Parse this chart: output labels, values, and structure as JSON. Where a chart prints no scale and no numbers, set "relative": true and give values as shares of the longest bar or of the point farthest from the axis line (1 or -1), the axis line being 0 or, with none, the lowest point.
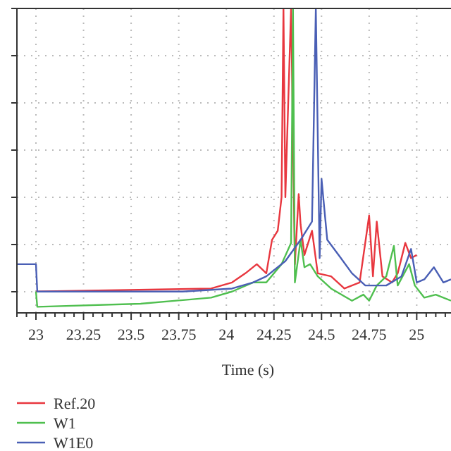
{
  "chart_data": {
    "type": "line",
    "relative": true,
    "xlabel": "Time (s)",
    "xlim": [
      22.9,
      25.18
    ],
    "xticks": [
      23,
      23.25,
      23.5,
      23.75,
      24,
      24.25,
      24.5,
      24.75,
      25
    ],
    "grid": true,
    "legend": "bottom left",
    "line_style": "solid",
    "series": [
      {
        "name": "Ref.20",
        "color": "#e8373f",
        "x": [
          23.0,
          23.92,
          24.03,
          24.1,
          24.16,
          24.21,
          24.24,
          24.27,
          24.29,
          24.3,
          24.31,
          24.34,
          24.36,
          24.38,
          24.39,
          24.41,
          24.45,
          24.48,
          24.55,
          24.62,
          24.7,
          24.75,
          24.77,
          24.79,
          24.82,
          24.87,
          24.9,
          24.94,
          24.97,
          25.0
        ],
        "values": [
          0.07,
          0.08,
          0.1,
          0.13,
          0.16,
          0.13,
          0.24,
          0.27,
          0.38,
          1,
          0.38,
          1,
          0.16,
          0.39,
          0.29,
          0.19,
          0.27,
          0.13,
          0.12,
          0.08,
          0.1,
          0.32,
          0.12,
          0.3,
          0.12,
          0.1,
          0.13,
          0.23,
          0.18,
          0.19
        ]
      },
      {
        "name": "W1",
        "color": "#4fbf4f",
        "x": [
          23.0,
          23.007,
          23.55,
          23.92,
          24.03,
          24.14,
          24.21,
          24.29,
          24.34,
          24.35,
          24.36,
          24.39,
          24.41,
          24.44,
          24.48,
          24.55,
          24.66,
          24.72,
          24.75,
          24.79,
          24.84,
          24.88,
          24.9,
          24.96,
          24.99,
          25.04,
          25.1,
          25.18
        ],
        "values": [
          0.07,
          0.02,
          0.03,
          0.05,
          0.07,
          0.1,
          0.1,
          0.16,
          0.23,
          1,
          0.1,
          0.24,
          0.15,
          0.16,
          0.12,
          0.08,
          0.04,
          0.06,
          0.04,
          0.09,
          0.12,
          0.22,
          0.09,
          0.16,
          0.09,
          0.05,
          0.06,
          0.04
        ]
      },
      {
        "name": "W1E0",
        "color": "#4a5fb5",
        "x": [
          22.9,
          23.0,
          23.007,
          23.77,
          24.03,
          24.14,
          24.21,
          24.31,
          24.39,
          24.45,
          24.47,
          24.49,
          24.5,
          24.53,
          24.59,
          24.66,
          24.73,
          24.84,
          24.92,
          24.97,
          25.0,
          25.04,
          25.09,
          25.14,
          25.18
        ],
        "values": [
          0.16,
          0.16,
          0.07,
          0.07,
          0.08,
          0.1,
          0.12,
          0.17,
          0.24,
          0.3,
          1,
          0.18,
          0.44,
          0.24,
          0.19,
          0.13,
          0.09,
          0.09,
          0.12,
          0.21,
          0.1,
          0.11,
          0.15,
          0.1,
          0.11
        ]
      }
    ]
  }
}
